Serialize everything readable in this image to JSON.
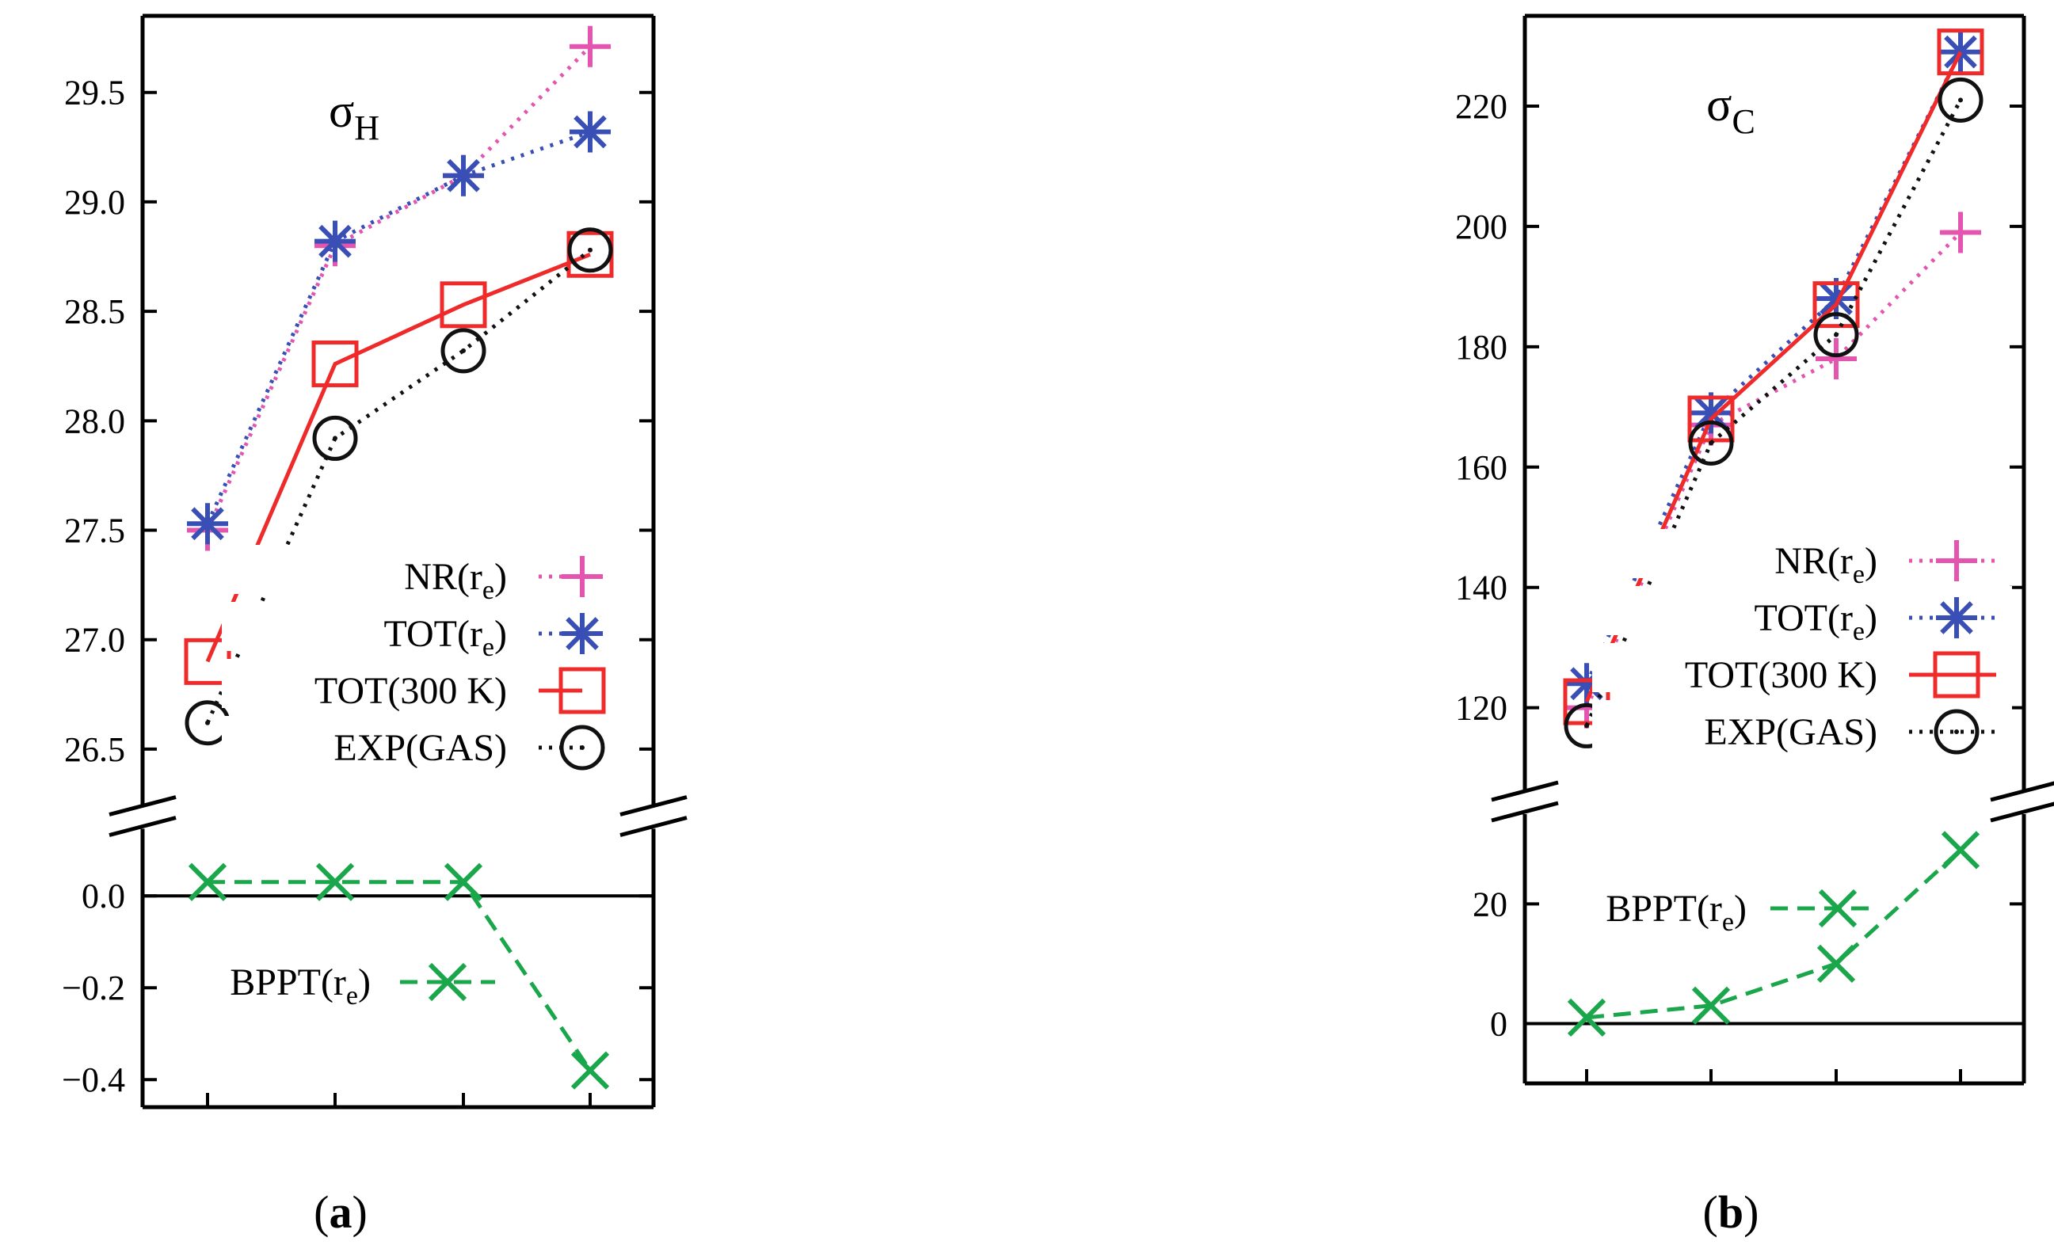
{
  "chart_data": [
    {
      "type": "line",
      "panel_label": "a",
      "title_main": "σ",
      "title_sub": "H",
      "categories": [
        "",
        "",
        "",
        ""
      ],
      "top": {
        "ylim": [
          26.25,
          29.85
        ],
        "yticks": [
          "26.5",
          "27.0",
          "27.5",
          "28.0",
          "28.5",
          "29.0",
          "29.5"
        ],
        "ytick_values": [
          26.5,
          27.0,
          27.5,
          28.0,
          28.5,
          29.0,
          29.5
        ],
        "series": [
          {
            "legend_main": "NR(r",
            "legend_sub": "e",
            "legend_close": ")",
            "values": [
              27.5,
              28.8,
              29.12,
              29.71
            ],
            "color": "#e455b0",
            "marker": "plus",
            "line": "dotted"
          },
          {
            "legend_main": "TOT(r",
            "legend_sub": "e",
            "legend_close": ")",
            "values": [
              27.53,
              28.82,
              29.12,
              29.32
            ],
            "color": "#3a4fb5",
            "marker": "star",
            "line": "dotted"
          },
          {
            "legend_main": "TOT(300 K)",
            "legend_sub": "",
            "legend_close": "",
            "values": [
              26.9,
              28.26,
              28.53,
              28.76
            ],
            "color": "#ee2a2a",
            "marker": "square",
            "line": "solid"
          },
          {
            "legend_main": "EXP(GAS)",
            "legend_sub": "",
            "legend_close": "",
            "values": [
              26.62,
              27.92,
              28.32,
              28.78
            ],
            "color": "#111111",
            "marker": "circle",
            "line": "dotted"
          }
        ]
      },
      "bottom": {
        "ylim": [
          -0.46,
          0.14
        ],
        "yticks": [
          "0.0",
          "−0.2",
          "−0.4"
        ],
        "ytick_values": [
          0.0,
          -0.2,
          -0.4
        ],
        "series": [
          {
            "legend_main": "BPPT(r",
            "legend_sub": "e",
            "legend_close": ")",
            "values": [
              0.03,
              0.03,
              0.03,
              -0.38
            ],
            "color": "#1aa64a",
            "marker": "x",
            "line": "dashed"
          }
        ]
      }
    },
    {
      "type": "line",
      "panel_label": "b",
      "title_main": "σ",
      "title_sub": "C",
      "categories": [
        "",
        "",
        "",
        ""
      ],
      "top": {
        "ylim": [
          106,
          235
        ],
        "yticks": [
          "120",
          "140",
          "160",
          "180",
          "200",
          "220"
        ],
        "ytick_values": [
          120,
          140,
          160,
          180,
          200,
          220
        ],
        "series": [
          {
            "legend_main": "NR(r",
            "legend_sub": "e",
            "legend_close": ")",
            "values": [
              120,
              167,
              178,
              199
            ],
            "color": "#e455b0",
            "marker": "plus",
            "line": "dotted"
          },
          {
            "legend_main": "TOT(r",
            "legend_sub": "e",
            "legend_close": ")",
            "values": [
              124,
              169,
              188,
              229
            ],
            "color": "#3a4fb5",
            "marker": "star",
            "line": "dotted"
          },
          {
            "legend_main": "TOT(300 K)",
            "legend_sub": "",
            "legend_close": "",
            "values": [
              121,
              168,
              187,
              229
            ],
            "color": "#ee2a2a",
            "marker": "square",
            "line": "solid"
          },
          {
            "legend_main": "EXP(GAS)",
            "legend_sub": "",
            "legend_close": "",
            "values": [
              117,
              164,
              182,
              221
            ],
            "color": "#111111",
            "marker": "circle",
            "line": "dotted"
          }
        ]
      },
      "bottom": {
        "ylim": [
          -10,
          35
        ],
        "yticks": [
          "0",
          "20"
        ],
        "ytick_values": [
          0,
          20
        ],
        "series": [
          {
            "legend_main": "BPPT(r",
            "legend_sub": "e",
            "legend_close": ")",
            "values": [
              1,
              3,
              10,
              29
            ],
            "color": "#1aa64a",
            "marker": "x",
            "line": "dashed"
          }
        ]
      }
    }
  ]
}
